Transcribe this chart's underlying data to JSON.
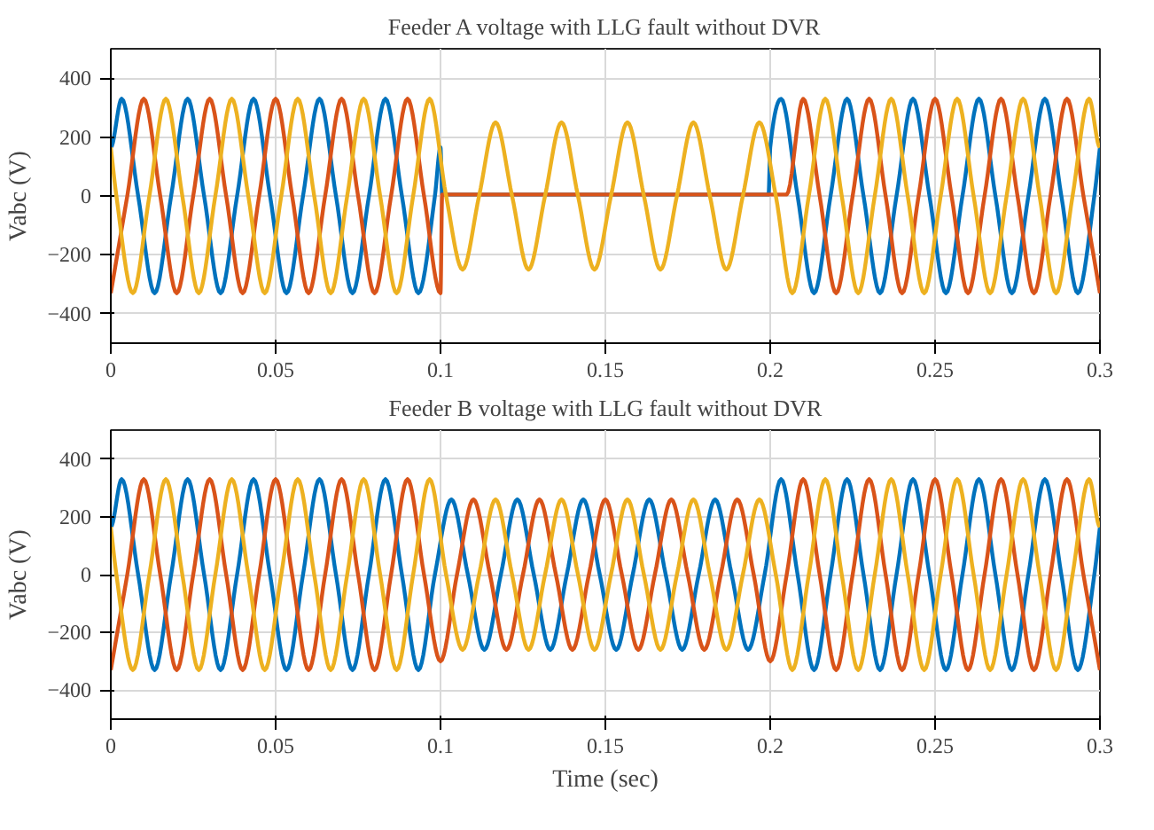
{
  "chart_data": [
    {
      "type": "line",
      "title": "Feeder A voltage with LLG fault without DVR",
      "ylabel": "Vabc (V)",
      "xlim": [
        0,
        0.3
      ],
      "xticks": [
        0,
        0.05,
        0.1,
        0.15,
        0.2,
        0.25,
        0.3
      ],
      "ylim": [
        -500,
        500
      ],
      "yticks": [
        -400,
        -200,
        0,
        200,
        400
      ],
      "grid": true,
      "series": [
        {
          "color": "#0072bd",
          "x": [
            0,
            0.0033,
            0.0083,
            0.0133,
            0.0183,
            0.0233,
            0.0283,
            0.0333,
            0.0383,
            0.0433,
            0.0483,
            0.0533,
            0.0583,
            0.0633,
            0.0683,
            0.0733,
            0.0783,
            0.0833,
            0.0883,
            0.0933,
            0.0983,
            0.1,
            0.1005,
            0.1995,
            0.2,
            0.2033,
            0.2083,
            0.2133,
            0.2183,
            0.2233,
            0.2283,
            0.2333,
            0.2383,
            0.2433,
            0.2483,
            0.2533,
            0.2583,
            0.2633,
            0.2683,
            0.2733,
            0.2783,
            0.2833,
            0.2883,
            0.2933,
            0.2983,
            0.3
          ],
          "values": [
            165,
            330,
            0,
            -330,
            0,
            330,
            0,
            -330,
            0,
            330,
            0,
            -330,
            0,
            330,
            0,
            -330,
            0,
            330,
            0,
            -330,
            0,
            165,
            5,
            5,
            165,
            330,
            0,
            -330,
            0,
            330,
            0,
            -330,
            0,
            330,
            0,
            -330,
            0,
            330,
            0,
            -330,
            0,
            330,
            0,
            -330,
            0,
            165
          ]
        },
        {
          "color": "#d95319",
          "x": [
            0,
            0.005,
            0.01,
            0.015,
            0.02,
            0.025,
            0.03,
            0.035,
            0.04,
            0.045,
            0.05,
            0.055,
            0.06,
            0.065,
            0.07,
            0.075,
            0.08,
            0.085,
            0.09,
            0.095,
            0.1,
            0.1005,
            0.205,
            0.21,
            0.215,
            0.22,
            0.225,
            0.23,
            0.235,
            0.24,
            0.245,
            0.25,
            0.255,
            0.26,
            0.265,
            0.27,
            0.275,
            0.28,
            0.285,
            0.29,
            0.295,
            0.3
          ],
          "values": [
            -330,
            0,
            330,
            0,
            -330,
            0,
            330,
            0,
            -330,
            0,
            330,
            0,
            -330,
            0,
            330,
            0,
            -330,
            0,
            330,
            0,
            -330,
            5,
            5,
            330,
            0,
            -330,
            0,
            330,
            0,
            -330,
            0,
            330,
            0,
            -330,
            0,
            330,
            0,
            -330,
            0,
            330,
            0,
            -330
          ]
        },
        {
          "color": "#edb120",
          "x": [
            0,
            0.0017,
            0.0067,
            0.0117,
            0.0167,
            0.0217,
            0.0267,
            0.0317,
            0.0367,
            0.0417,
            0.0467,
            0.0517,
            0.0567,
            0.0617,
            0.0667,
            0.0717,
            0.0767,
            0.0817,
            0.0867,
            0.0917,
            0.0967,
            0.1017,
            0.1067,
            0.1117,
            0.1167,
            0.1217,
            0.1267,
            0.1317,
            0.1367,
            0.1417,
            0.1467,
            0.1517,
            0.1567,
            0.1617,
            0.1667,
            0.1717,
            0.1767,
            0.1817,
            0.1867,
            0.1917,
            0.1967,
            0.2017,
            0.2067,
            0.2117,
            0.2167,
            0.2217,
            0.2267,
            0.2317,
            0.2367,
            0.2417,
            0.2467,
            0.2517,
            0.2567,
            0.2617,
            0.2667,
            0.2717,
            0.2767,
            0.2817,
            0.2867,
            0.2917,
            0.2967,
            0.3
          ],
          "values": [
            165,
            0,
            -330,
            0,
            330,
            0,
            -330,
            0,
            330,
            0,
            -330,
            0,
            330,
            0,
            -330,
            0,
            330,
            0,
            -330,
            0,
            330,
            0,
            -250,
            0,
            250,
            0,
            -250,
            0,
            250,
            0,
            -250,
            0,
            250,
            0,
            -250,
            0,
            250,
            0,
            -250,
            0,
            250,
            0,
            -330,
            0,
            330,
            0,
            -330,
            0,
            330,
            0,
            -330,
            0,
            330,
            0,
            -330,
            0,
            330,
            0,
            -330,
            0,
            330,
            165
          ]
        }
      ]
    },
    {
      "type": "line",
      "title": "Feeder B voltage with LLG fault without DVR",
      "xlabel": "Time (sec)",
      "ylabel": "Vabc (V)",
      "xlim": [
        0,
        0.3
      ],
      "xticks": [
        0,
        0.05,
        0.1,
        0.15,
        0.2,
        0.25,
        0.3
      ],
      "ylim": [
        -500,
        500
      ],
      "yticks": [
        -400,
        -200,
        0,
        200,
        400
      ],
      "grid": true,
      "series": [
        {
          "color": "#0072bd",
          "x": [
            0,
            0.0033,
            0.0083,
            0.0133,
            0.0183,
            0.0233,
            0.0283,
            0.0333,
            0.0383,
            0.0433,
            0.0483,
            0.0533,
            0.0583,
            0.0633,
            0.0683,
            0.0733,
            0.0783,
            0.0833,
            0.0883,
            0.0933,
            0.0983,
            0.1033,
            0.1083,
            0.1133,
            0.1183,
            0.1233,
            0.1283,
            0.1333,
            0.1383,
            0.1433,
            0.1483,
            0.1533,
            0.1583,
            0.1633,
            0.1683,
            0.1733,
            0.1783,
            0.1833,
            0.1883,
            0.1933,
            0.1983,
            0.2033,
            0.2083,
            0.2133,
            0.2183,
            0.2233,
            0.2283,
            0.2333,
            0.2383,
            0.2433,
            0.2483,
            0.2533,
            0.2583,
            0.2633,
            0.2683,
            0.2733,
            0.2783,
            0.2833,
            0.2883,
            0.2933,
            0.2983,
            0.3
          ],
          "values": [
            165,
            330,
            0,
            -330,
            0,
            330,
            0,
            -330,
            0,
            330,
            0,
            -330,
            0,
            330,
            0,
            -330,
            0,
            330,
            0,
            -330,
            0,
            260,
            0,
            -260,
            0,
            260,
            0,
            -260,
            0,
            260,
            0,
            -260,
            0,
            260,
            0,
            -260,
            0,
            260,
            0,
            -260,
            0,
            330,
            0,
            -330,
            0,
            330,
            0,
            -330,
            0,
            330,
            0,
            -330,
            0,
            330,
            0,
            -330,
            0,
            330,
            0,
            -330,
            0,
            165
          ]
        },
        {
          "color": "#d95319",
          "x": [
            0,
            0.005,
            0.01,
            0.015,
            0.02,
            0.025,
            0.03,
            0.035,
            0.04,
            0.045,
            0.05,
            0.055,
            0.06,
            0.065,
            0.07,
            0.075,
            0.08,
            0.085,
            0.09,
            0.095,
            0.1,
            0.105,
            0.11,
            0.115,
            0.12,
            0.125,
            0.13,
            0.135,
            0.14,
            0.145,
            0.15,
            0.155,
            0.16,
            0.165,
            0.17,
            0.175,
            0.18,
            0.185,
            0.19,
            0.195,
            0.2,
            0.205,
            0.21,
            0.215,
            0.22,
            0.225,
            0.23,
            0.235,
            0.24,
            0.245,
            0.25,
            0.255,
            0.26,
            0.265,
            0.27,
            0.275,
            0.28,
            0.285,
            0.29,
            0.295,
            0.3
          ],
          "values": [
            -330,
            0,
            330,
            0,
            -330,
            0,
            330,
            0,
            -330,
            0,
            330,
            0,
            -330,
            0,
            330,
            0,
            -330,
            0,
            330,
            0,
            -300,
            0,
            260,
            0,
            -260,
            0,
            260,
            0,
            -260,
            0,
            260,
            0,
            -260,
            0,
            260,
            0,
            -260,
            0,
            260,
            0,
            -300,
            0,
            330,
            0,
            -330,
            0,
            330,
            0,
            -330,
            0,
            330,
            0,
            -330,
            0,
            330,
            0,
            -330,
            0,
            330,
            0,
            -330
          ]
        },
        {
          "color": "#edb120",
          "x": [
            0,
            0.0017,
            0.0067,
            0.0117,
            0.0167,
            0.0217,
            0.0267,
            0.0317,
            0.0367,
            0.0417,
            0.0467,
            0.0517,
            0.0567,
            0.0617,
            0.0667,
            0.0717,
            0.0767,
            0.0817,
            0.0867,
            0.0917,
            0.0967,
            0.1017,
            0.1067,
            0.1117,
            0.1167,
            0.1217,
            0.1267,
            0.1317,
            0.1367,
            0.1417,
            0.1467,
            0.1517,
            0.1567,
            0.1617,
            0.1667,
            0.1717,
            0.1767,
            0.1817,
            0.1867,
            0.1917,
            0.1967,
            0.2017,
            0.2067,
            0.2117,
            0.2167,
            0.2217,
            0.2267,
            0.2317,
            0.2367,
            0.2417,
            0.2467,
            0.2517,
            0.2567,
            0.2617,
            0.2667,
            0.2717,
            0.2767,
            0.2817,
            0.2867,
            0.2917,
            0.2967,
            0.3
          ],
          "values": [
            165,
            0,
            -330,
            0,
            330,
            0,
            -330,
            0,
            330,
            0,
            -330,
            0,
            330,
            0,
            -330,
            0,
            330,
            0,
            -330,
            0,
            330,
            0,
            -260,
            0,
            260,
            0,
            -260,
            0,
            260,
            0,
            -260,
            0,
            260,
            0,
            -260,
            0,
            260,
            0,
            -260,
            0,
            260,
            0,
            -330,
            0,
            330,
            0,
            -330,
            0,
            330,
            0,
            -330,
            0,
            330,
            0,
            -330,
            0,
            330,
            0,
            -330,
            0,
            330,
            165
          ]
        }
      ]
    }
  ]
}
